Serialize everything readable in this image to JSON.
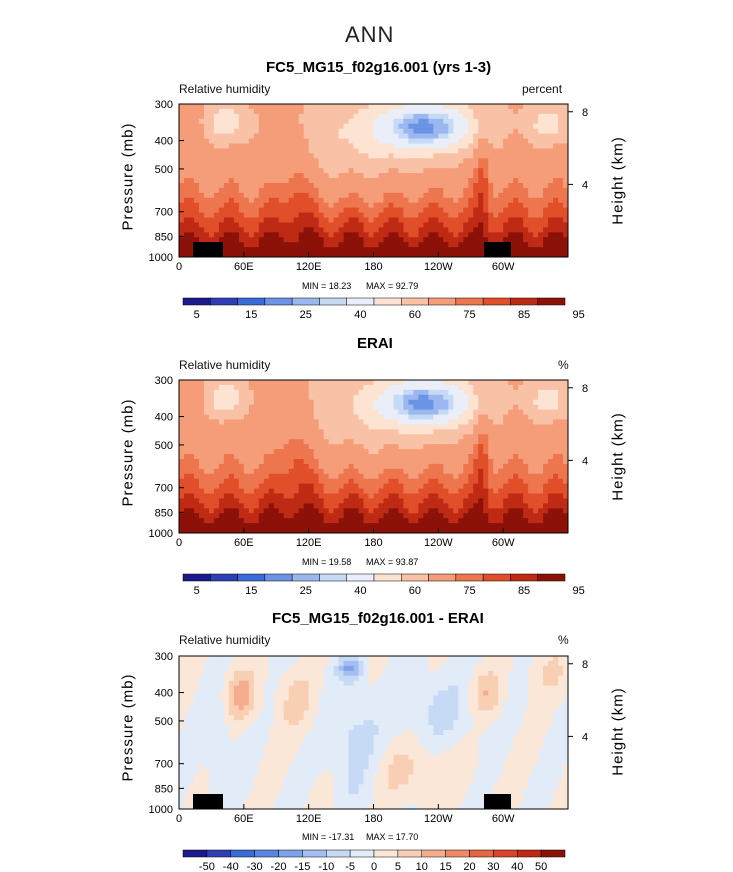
{
  "page_title": "ANN",
  "colormaps": {
    "abs": [
      "#1a1a8c",
      "#2e3fb5",
      "#3a6bd8",
      "#6b93e6",
      "#9ab8ef",
      "#c6d9f5",
      "#e9eef8",
      "#fde4d2",
      "#f9c2a6",
      "#f59c79",
      "#ee764e",
      "#e14e2a",
      "#bf2a14",
      "#8c1209"
    ],
    "diff": [
      "#1a1a8c",
      "#2e3fb5",
      "#3a6bd8",
      "#5a85e2",
      "#7ea2ea",
      "#a3bef0",
      "#c6d9f5",
      "#e2ebf8",
      "#fbe7d8",
      "#f9cfb4",
      "#f5ad8e",
      "#ee8a66",
      "#e6663f",
      "#d8452a",
      "#bf2a14",
      "#8c1209"
    ]
  },
  "chart_data": [
    {
      "type": "heatmap",
      "title": "FC5_MG15_f02g16.001 (yrs 1-3)",
      "left_label": "Relative humidity",
      "right_label": "percent",
      "ylabel": "Pressure (mb)",
      "y2label": "Height (km)",
      "x_ticks": [
        "0",
        "60E",
        "120E",
        "180",
        "120W",
        "60W"
      ],
      "x_tick_values": [
        0,
        60,
        120,
        180,
        240,
        300
      ],
      "xlim": [
        0,
        360
      ],
      "y_ticks": [
        "300",
        "400",
        "500",
        "700",
        "850",
        "1000"
      ],
      "y_tick_values": [
        300,
        400,
        500,
        700,
        850,
        1000
      ],
      "ylim": [
        300,
        1000
      ],
      "y2_ticks": [
        "8",
        "4"
      ],
      "y2_tick_values": [
        8,
        4
      ],
      "min_text": "MIN =   18.23",
      "max_text": "MAX =   92.79",
      "min": 18.23,
      "max": 92.79,
      "colorbar_labels": [
        "5",
        "15",
        "25",
        "40",
        "60",
        "75",
        "85",
        "95"
      ],
      "colorbar_levels": [
        5,
        10,
        15,
        20,
        25,
        30,
        40,
        50,
        60,
        70,
        75,
        80,
        85,
        90,
        95
      ],
      "colormap": "abs",
      "topography": true
    },
    {
      "type": "heatmap",
      "title": "ERAI",
      "left_label": "Relative humidity",
      "right_label": "%",
      "ylabel": "Pressure (mb)",
      "y2label": "Height (km)",
      "x_ticks": [
        "0",
        "60E",
        "120E",
        "180",
        "120W",
        "60W"
      ],
      "x_tick_values": [
        0,
        60,
        120,
        180,
        240,
        300
      ],
      "xlim": [
        0,
        360
      ],
      "y_ticks": [
        "300",
        "400",
        "500",
        "700",
        "850",
        "1000"
      ],
      "y_tick_values": [
        300,
        400,
        500,
        700,
        850,
        1000
      ],
      "ylim": [
        300,
        1000
      ],
      "y2_ticks": [
        "8",
        "4"
      ],
      "y2_tick_values": [
        8,
        4
      ],
      "min_text": "MIN =   19.58",
      "max_text": "MAX =   93.87",
      "min": 19.58,
      "max": 93.87,
      "colorbar_labels": [
        "5",
        "15",
        "25",
        "40",
        "60",
        "75",
        "85",
        "95"
      ],
      "colorbar_levels": [
        5,
        10,
        15,
        20,
        25,
        30,
        40,
        50,
        60,
        70,
        75,
        80,
        85,
        90,
        95
      ],
      "colormap": "abs",
      "topography": false
    },
    {
      "type": "heatmap",
      "title": "FC5_MG15_f02g16.001 - ERAI",
      "left_label": "Relative humidity",
      "right_label": "%",
      "ylabel": "Pressure (mb)",
      "y2label": "Height (km)",
      "x_ticks": [
        "0",
        "60E",
        "120E",
        "180",
        "120W",
        "60W"
      ],
      "x_tick_values": [
        0,
        60,
        120,
        180,
        240,
        300
      ],
      "xlim": [
        0,
        360
      ],
      "y_ticks": [
        "300",
        "400",
        "500",
        "700",
        "850",
        "1000"
      ],
      "y_tick_values": [
        300,
        400,
        500,
        700,
        850,
        1000
      ],
      "ylim": [
        300,
        1000
      ],
      "y2_ticks": [
        "8",
        "4"
      ],
      "y2_tick_values": [
        8,
        4
      ],
      "min_text": "MIN = -17.31",
      "max_text": "MAX =   17.70",
      "min": -17.31,
      "max": 17.7,
      "colorbar_labels": [
        "-50",
        "-40",
        "-30",
        "-20",
        "-15",
        "-10",
        "-5",
        "0",
        "5",
        "10",
        "15",
        "20",
        "30",
        "40",
        "50"
      ],
      "colorbar_levels": [
        -50,
        -40,
        -30,
        -20,
        -15,
        -10,
        -5,
        0,
        5,
        10,
        15,
        20,
        30,
        40,
        50
      ],
      "colormap": "diff",
      "topography": true
    }
  ]
}
